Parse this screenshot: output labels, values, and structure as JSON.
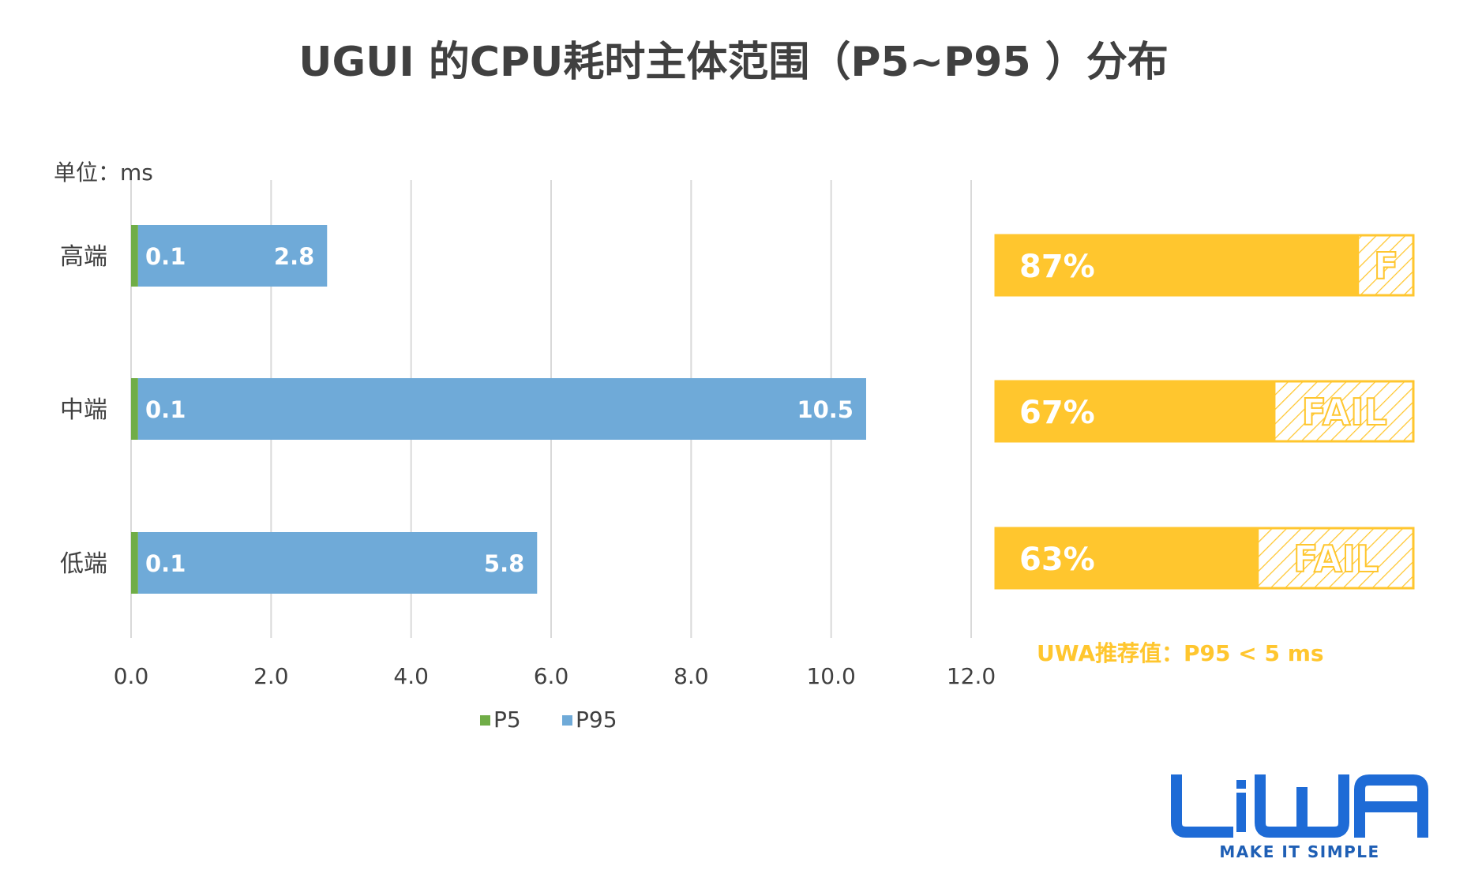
{
  "title": "UGUI 的CPU耗时主体范围（P5~P95 ）分布",
  "unit_label": "单位：ms",
  "colors": {
    "p5": "#70AD47",
    "p95": "#6FAAD8",
    "gauge": "#FFC62E",
    "grid": "#D9D9D9",
    "text": "#404040",
    "white": "#FFFFFF",
    "logo": "#1E6BD6",
    "logo_dark": "#1F5FB5"
  },
  "chart_data": {
    "type": "bar",
    "orientation": "horizontal",
    "stacked": true,
    "title": "UGUI 的CPU耗时主体范围（P5~P95 ）分布",
    "unit": "单位：ms",
    "categories": [
      "高端",
      "中端",
      "低端"
    ],
    "series": [
      {
        "name": "P5",
        "color": "#70AD47",
        "values": [
          0.1,
          0.1,
          0.1
        ],
        "labels": [
          "0.1",
          "0.1",
          "0.1"
        ]
      },
      {
        "name": "P95",
        "color": "#6FAAD8",
        "values": [
          2.8,
          10.5,
          5.8
        ],
        "labels": [
          "2.8",
          "10.5",
          "5.8"
        ]
      }
    ],
    "xlim": [
      0,
      12
    ],
    "xticks": [
      "0.0",
      "2.0",
      "4.0",
      "6.0",
      "8.0",
      "10.0",
      "12.0"
    ],
    "grid": true,
    "legend_position": "bottom"
  },
  "pass_rates": [
    {
      "category": "高端",
      "label": "87%",
      "value": 0.87,
      "fail_label": "F"
    },
    {
      "category": "中端",
      "label": "67%",
      "value": 0.67,
      "fail_label": "FAIL"
    },
    {
      "category": "低端",
      "label": "63%",
      "value": 0.63,
      "fail_label": "FAIL"
    }
  ],
  "recommendation": "UWA推荐值：P95 < 5 ms",
  "logo": {
    "name": "UWA",
    "slogan": "MAKE IT SIMPLE"
  }
}
